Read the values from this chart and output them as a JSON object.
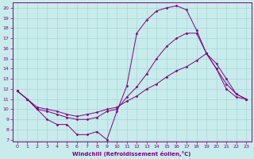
{
  "xlabel": "Windchill (Refroidissement éolien,°C)",
  "bg_color": "#c8ecec",
  "line_color": "#800080",
  "grid_color": "#aad4d4",
  "xlim": [
    -0.5,
    23.5
  ],
  "ylim": [
    6.8,
    20.5
  ],
  "yticks": [
    7,
    8,
    9,
    10,
    11,
    12,
    13,
    14,
    15,
    16,
    17,
    18,
    19,
    20
  ],
  "xticks": [
    0,
    1,
    2,
    3,
    4,
    5,
    6,
    7,
    8,
    9,
    10,
    11,
    12,
    13,
    14,
    15,
    16,
    17,
    18,
    19,
    20,
    21,
    22,
    23
  ],
  "series": [
    {
      "x": [
        0,
        1,
        2,
        3,
        4,
        5,
        6,
        7,
        8,
        9,
        10,
        11,
        12,
        13,
        14,
        15,
        16,
        17,
        18,
        19,
        20,
        21,
        22,
        23
      ],
      "y": [
        11.8,
        11.0,
        10.0,
        9.0,
        8.5,
        8.5,
        7.5,
        7.5,
        7.8,
        7.0,
        9.8,
        12.3,
        17.5,
        18.8,
        19.7,
        20.0,
        20.2,
        19.8,
        17.8,
        15.5,
        14.0,
        12.0,
        11.2,
        11.0
      ]
    },
    {
      "x": [
        0,
        1,
        2,
        3,
        4,
        5,
        6,
        7,
        8,
        9,
        10,
        11,
        12,
        13,
        14,
        15,
        16,
        17,
        18,
        19,
        20,
        21,
        22,
        23
      ],
      "y": [
        11.8,
        11.0,
        10.0,
        9.8,
        9.5,
        9.2,
        9.0,
        9.0,
        9.2,
        9.8,
        10.0,
        11.2,
        12.2,
        13.5,
        15.0,
        16.2,
        17.0,
        17.5,
        17.5,
        15.5,
        14.0,
        12.5,
        11.5,
        11.0
      ]
    },
    {
      "x": [
        0,
        1,
        2,
        3,
        4,
        5,
        6,
        7,
        8,
        9,
        10,
        11,
        12,
        13,
        14,
        15,
        16,
        17,
        18,
        19,
        20,
        21,
        22,
        23
      ],
      "y": [
        11.8,
        11.0,
        10.2,
        10.0,
        9.8,
        9.5,
        9.3,
        9.5,
        9.7,
        10.0,
        10.2,
        10.8,
        11.3,
        12.0,
        12.5,
        13.2,
        13.8,
        14.2,
        14.8,
        15.5,
        14.5,
        13.0,
        11.5,
        11.0
      ]
    }
  ]
}
